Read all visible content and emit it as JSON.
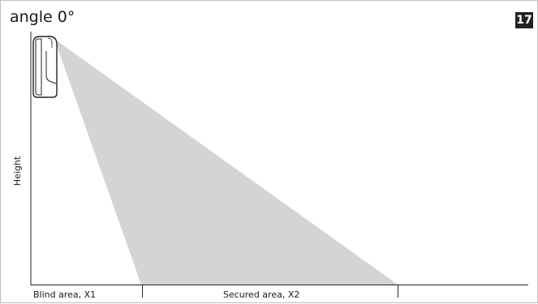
{
  "figure": {
    "title": "angle 0°",
    "number": "17",
    "y_axis_label": "Height",
    "zones": [
      {
        "label": "Blind area, X1"
      },
      {
        "label": "Secured area, X2"
      }
    ],
    "colors": {
      "coverage_fill": "#d4d4d4",
      "axis": "#222222",
      "badge_bg": "#222222",
      "border": "#bdbdbd"
    },
    "icons": {
      "sensor": "motion-sensor-icon"
    }
  }
}
